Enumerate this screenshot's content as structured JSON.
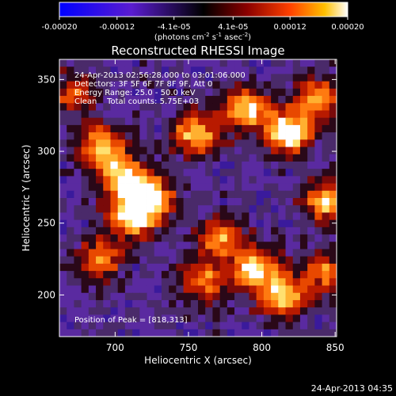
{
  "colorbar": {
    "ticks": [
      "-0.00020",
      "-0.00012",
      "-4.1e-05",
      "4.1e-05",
      "0.00012",
      "0.00020"
    ],
    "tick_values": [
      -0.0002,
      -0.00012,
      -4.1e-05,
      4.1e-05,
      0.00012,
      0.0002
    ],
    "range": [
      -0.0002,
      0.0002
    ],
    "unit_prefix": "(photons cm",
    "unit_exp1": "-2",
    "unit_mid": " s",
    "unit_exp2": "-1",
    "unit_mid2": " asec",
    "unit_exp3": "-2",
    "unit_suffix": ")"
  },
  "chart_data": {
    "type": "heatmap",
    "title": "Reconstructed RHESSI Image",
    "xlabel": "Heliocentric X (arcsec)",
    "ylabel": "Heliocentric Y (arcsec)",
    "xlim": [
      662,
      851
    ],
    "ylim": [
      171,
      364
    ],
    "x_ticks": [
      700,
      750,
      800,
      850
    ],
    "y_ticks": [
      200,
      250,
      300,
      350
    ],
    "x_tick_labels": [
      "700",
      "750",
      "800",
      "850"
    ],
    "y_tick_labels": [
      "200",
      "250",
      "300",
      "350"
    ],
    "annotations": [
      "24-Apr-2013 02:56:28.000 to 03:01:06.000",
      "Detectors: 3F 5F 6F 7F 8F 9F, Att 0",
      "Energy Range: 25.0 - 50.0 keV",
      "Clean    Total counts: 5.75E+03"
    ],
    "peak_label": "Position of Peak = [818,313]",
    "peak": [
      818,
      313
    ],
    "bright_regions": [
      {
        "x": 722,
        "y": 268,
        "level": 0.95
      },
      {
        "x": 712,
        "y": 255,
        "level": 0.85
      },
      {
        "x": 705,
        "y": 283,
        "level": 0.8
      },
      {
        "x": 690,
        "y": 305,
        "level": 0.7
      },
      {
        "x": 755,
        "y": 312,
        "level": 0.75
      },
      {
        "x": 790,
        "y": 330,
        "level": 0.8
      },
      {
        "x": 818,
        "y": 313,
        "level": 1.0
      },
      {
        "x": 838,
        "y": 337,
        "level": 0.7
      },
      {
        "x": 845,
        "y": 265,
        "level": 0.75
      },
      {
        "x": 772,
        "y": 240,
        "level": 0.65
      },
      {
        "x": 795,
        "y": 218,
        "level": 0.8
      },
      {
        "x": 815,
        "y": 200,
        "level": 0.85
      },
      {
        "x": 760,
        "y": 210,
        "level": 0.55
      },
      {
        "x": 690,
        "y": 225,
        "level": 0.6
      },
      {
        "x": 672,
        "y": 340,
        "level": 0.5
      },
      {
        "x": 845,
        "y": 215,
        "level": 0.6
      }
    ]
  },
  "footer": {
    "timestamp": "24-Apr-2013 04:35"
  }
}
